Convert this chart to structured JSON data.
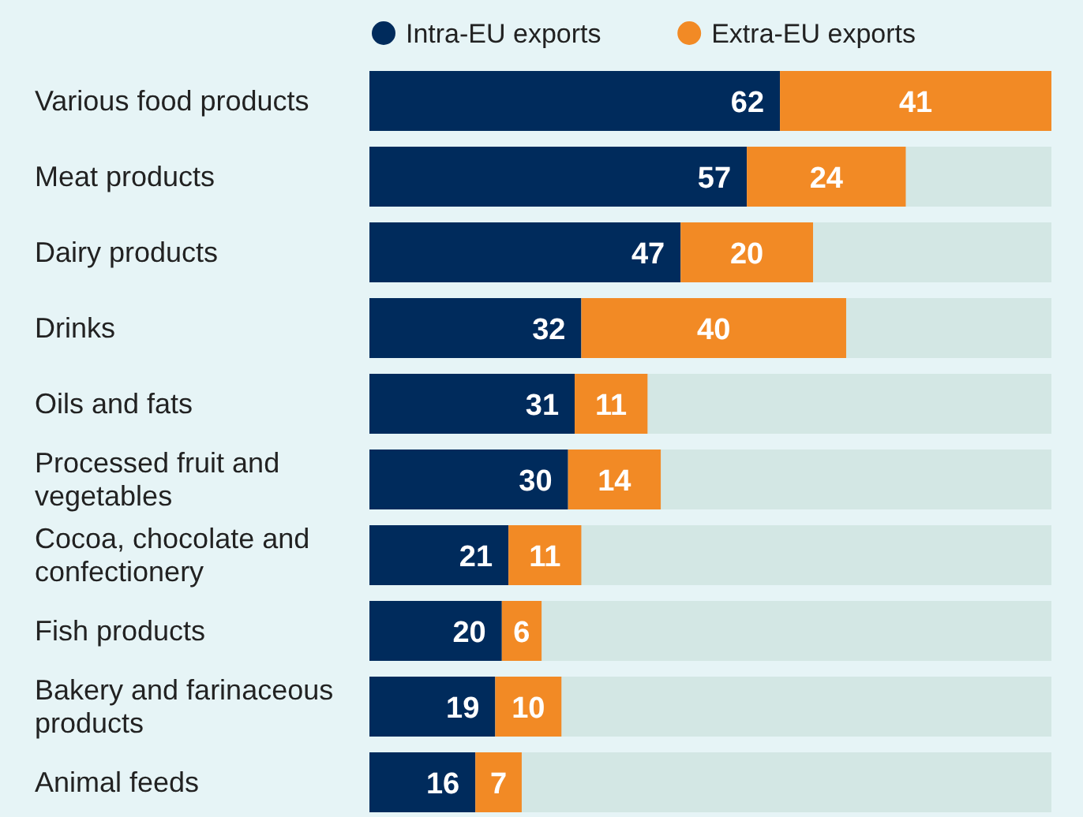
{
  "chart_data": {
    "type": "bar",
    "orientation": "horizontal",
    "stacked": true,
    "legend": "top",
    "data_labels": true,
    "categories": [
      "Various food products",
      "Meat products",
      "Dairy products",
      "Drinks",
      "Oils and fats",
      "Processed fruit and vegetables",
      "Cocoa, chocolate and confectionery",
      "Fish products",
      "Bakery and farinaceous products",
      "Animal feeds"
    ],
    "series": [
      {
        "name": "Intra-EU exports",
        "color": "#002b5c",
        "values": [
          62,
          57,
          47,
          32,
          31,
          30,
          21,
          20,
          19,
          16
        ]
      },
      {
        "name": "Extra-EU exports",
        "color": "#f28a25",
        "values": [
          41,
          24,
          20,
          40,
          11,
          14,
          11,
          6,
          10,
          7
        ]
      }
    ]
  }
}
